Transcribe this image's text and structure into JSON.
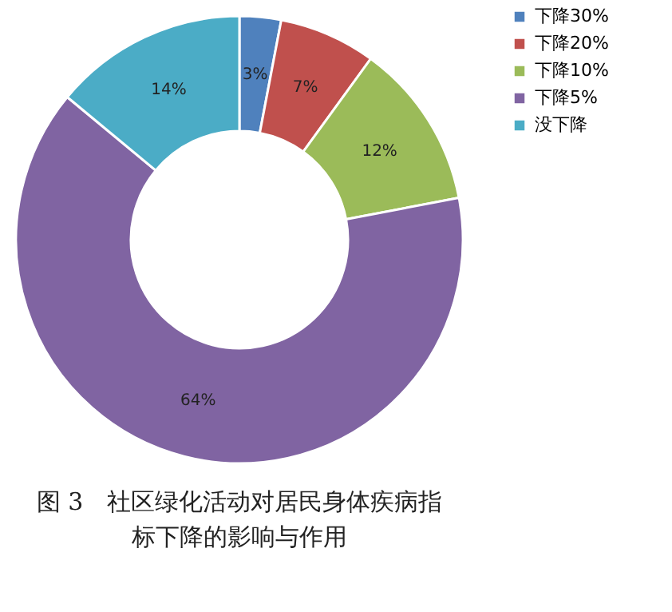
{
  "chart_data": {
    "type": "donut",
    "title": "图 3　社区绿化活动对居民身体疾病指标下降的影响与作用",
    "categories": [
      "下降30%",
      "下降20%",
      "下降10%",
      "下降5%",
      "没下降"
    ],
    "values": [
      3,
      7,
      12,
      64,
      14
    ],
    "value_labels": [
      "3%",
      "7%",
      "12%",
      "64%",
      "14%"
    ],
    "colors": [
      "#4f81bd",
      "#c0504d",
      "#9bbb59",
      "#8064a2",
      "#4bacc6"
    ],
    "legend": "right"
  }
}
